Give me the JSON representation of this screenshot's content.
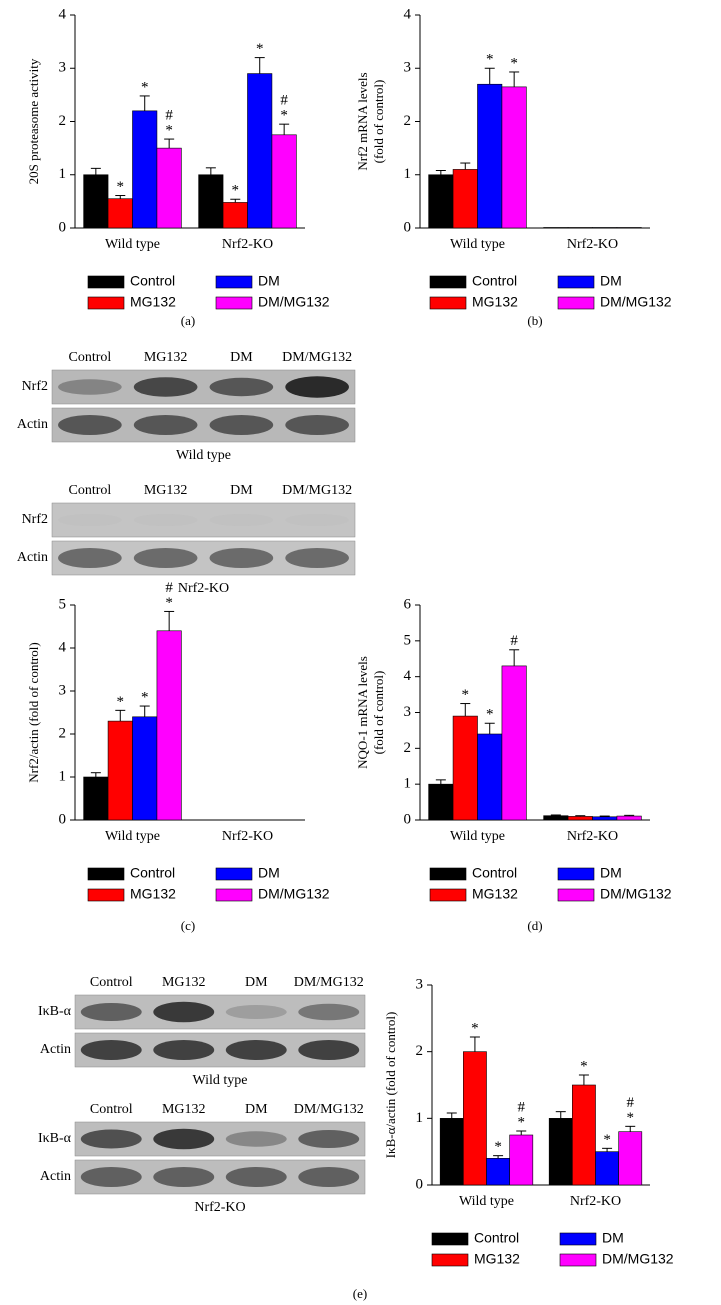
{
  "chart_data": [
    {
      "type": "bar",
      "ylabel": [
        "20S proteasome activity"
      ],
      "categories": [
        "Wild type",
        "Nrf2-KO"
      ],
      "ylim": [
        0,
        4
      ],
      "yticks": [
        0,
        1,
        2,
        3,
        4
      ],
      "caption": "(a)",
      "series": [
        {
          "name": "Control",
          "color": "#000000",
          "values": [
            1,
            1
          ],
          "errors": [
            0.12,
            0.13
          ],
          "significance": [
            [],
            []
          ]
        },
        {
          "name": "MG132",
          "color": "#ff0000",
          "values": [
            0.55,
            0.48
          ],
          "errors": [
            0.06,
            0.06
          ],
          "significance": [
            [
              "*"
            ],
            [
              "*"
            ]
          ]
        },
        {
          "name": "DM",
          "color": "#0000ff",
          "values": [
            2.2,
            2.9
          ],
          "errors": [
            0.28,
            0.3
          ],
          "significance": [
            [
              "*"
            ],
            [
              "*"
            ]
          ]
        },
        {
          "name": "DM/MG132",
          "color": "#ff00ff",
          "values": [
            1.5,
            1.75
          ],
          "errors": [
            0.17,
            0.2
          ],
          "significance": [
            [
              "#",
              "*"
            ],
            [
              "#",
              "*"
            ]
          ]
        }
      ]
    },
    {
      "type": "bar",
      "ylabel": [
        "Nrf2 mRNA levels",
        "(fold of control)"
      ],
      "categories": [
        "Wild type",
        "Nrf2-KO"
      ],
      "ylim": [
        0,
        4
      ],
      "yticks": [
        0,
        1,
        2,
        3,
        4
      ],
      "caption": "(b)",
      "series": [
        {
          "name": "Control",
          "color": "#000000",
          "values": [
            1,
            0.01
          ],
          "errors": [
            0.08,
            0
          ],
          "significance": [
            [],
            []
          ]
        },
        {
          "name": "MG132",
          "color": "#ff0000",
          "values": [
            1.1,
            0.01
          ],
          "errors": [
            0.12,
            0
          ],
          "significance": [
            [],
            []
          ]
        },
        {
          "name": "DM",
          "color": "#0000ff",
          "values": [
            2.7,
            0.01
          ],
          "errors": [
            0.3,
            0
          ],
          "significance": [
            [
              "*"
            ],
            []
          ]
        },
        {
          "name": "DM/MG132",
          "color": "#ff00ff",
          "values": [
            2.65,
            0.01
          ],
          "errors": [
            0.28,
            0
          ],
          "significance": [
            [
              "*"
            ],
            []
          ]
        }
      ]
    },
    {
      "type": "bar",
      "ylabel": [
        "Nrf2/actin (fold of control)"
      ],
      "categories": [
        "Wild type",
        "Nrf2-KO"
      ],
      "ylim": [
        0,
        5
      ],
      "yticks": [
        0,
        1,
        2,
        3,
        4,
        5
      ],
      "caption": "(c)",
      "series": [
        {
          "name": "Control",
          "color": "#000000",
          "values": [
            1,
            0
          ],
          "errors": [
            0.1,
            0
          ],
          "significance": [
            [],
            []
          ]
        },
        {
          "name": "MG132",
          "color": "#ff0000",
          "values": [
            2.3,
            0
          ],
          "errors": [
            0.25,
            0
          ],
          "significance": [
            [
              "*"
            ],
            []
          ]
        },
        {
          "name": "DM",
          "color": "#0000ff",
          "values": [
            2.4,
            0
          ],
          "errors": [
            0.25,
            0
          ],
          "significance": [
            [
              "*"
            ],
            []
          ]
        },
        {
          "name": "DM/MG132",
          "color": "#ff00ff",
          "values": [
            4.4,
            0
          ],
          "errors": [
            0.45,
            0
          ],
          "significance": [
            [
              "#",
              "*"
            ],
            []
          ]
        }
      ]
    },
    {
      "type": "bar",
      "ylabel": [
        "NQO-1 mRNA levels",
        "(fold of control)"
      ],
      "categories": [
        "Wild type",
        "Nrf2-KO"
      ],
      "ylim": [
        0,
        6
      ],
      "yticks": [
        0,
        1,
        2,
        3,
        4,
        5,
        6
      ],
      "caption": "(d)",
      "series": [
        {
          "name": "Control",
          "color": "#000000",
          "values": [
            1,
            0.12
          ],
          "errors": [
            0.12,
            0.02
          ],
          "significance": [
            [],
            []
          ]
        },
        {
          "name": "MG132",
          "color": "#ff0000",
          "values": [
            2.9,
            0.1
          ],
          "errors": [
            0.35,
            0.02
          ],
          "significance": [
            [
              "*"
            ],
            []
          ]
        },
        {
          "name": "DM",
          "color": "#0000ff",
          "values": [
            2.4,
            0.09
          ],
          "errors": [
            0.3,
            0.02
          ],
          "significance": [
            [
              "*"
            ],
            []
          ]
        },
        {
          "name": "DM/MG132",
          "color": "#ff00ff",
          "values": [
            4.3,
            0.11
          ],
          "errors": [
            0.45,
            0.02
          ],
          "significance": [
            [
              "#"
            ],
            []
          ]
        }
      ]
    },
    {
      "type": "bar",
      "ylabel": [
        "IκB-α/actin (fold of control)"
      ],
      "categories": [
        "Wild type",
        "Nrf2-KO"
      ],
      "ylim": [
        0,
        3
      ],
      "yticks": [
        0,
        1,
        2,
        3
      ],
      "caption": "(e)",
      "series": [
        {
          "name": "Control",
          "color": "#000000",
          "values": [
            1,
            1
          ],
          "errors": [
            0.08,
            0.1
          ],
          "significance": [
            [],
            []
          ]
        },
        {
          "name": "MG132",
          "color": "#ff0000",
          "values": [
            2.0,
            1.5
          ],
          "errors": [
            0.22,
            0.15
          ],
          "significance": [
            [
              "*"
            ],
            [
              "*"
            ]
          ]
        },
        {
          "name": "DM",
          "color": "#0000ff",
          "values": [
            0.4,
            0.5
          ],
          "errors": [
            0.04,
            0.05
          ],
          "significance": [
            [
              "*"
            ],
            [
              "*"
            ]
          ]
        },
        {
          "name": "DM/MG132",
          "color": "#ff00ff",
          "values": [
            0.75,
            0.8
          ],
          "errors": [
            0.06,
            0.08
          ],
          "significance": [
            [
              "#",
              "*"
            ],
            [
              "#",
              "*"
            ]
          ]
        }
      ]
    }
  ],
  "blots": [
    {
      "lanes": [
        "Control",
        "MG132",
        "DM",
        "DM/MG132"
      ],
      "rows": [
        "Nrf2",
        "Actin"
      ],
      "group": "Wild type"
    },
    {
      "lanes": [
        "Control",
        "MG132",
        "DM",
        "DM/MG132"
      ],
      "rows": [
        "Nrf2",
        "Actin"
      ],
      "group": "Nrf2-KO"
    },
    {
      "lanes": [
        "Control",
        "MG132",
        "DM",
        "DM/MG132"
      ],
      "rows": [
        "IκB-α",
        "Actin"
      ],
      "group": "Wild type"
    },
    {
      "lanes": [
        "Control",
        "MG132",
        "DM",
        "DM/MG132"
      ],
      "rows": [
        "IκB-α",
        "Actin"
      ],
      "group": "Nrf2-KO"
    }
  ]
}
